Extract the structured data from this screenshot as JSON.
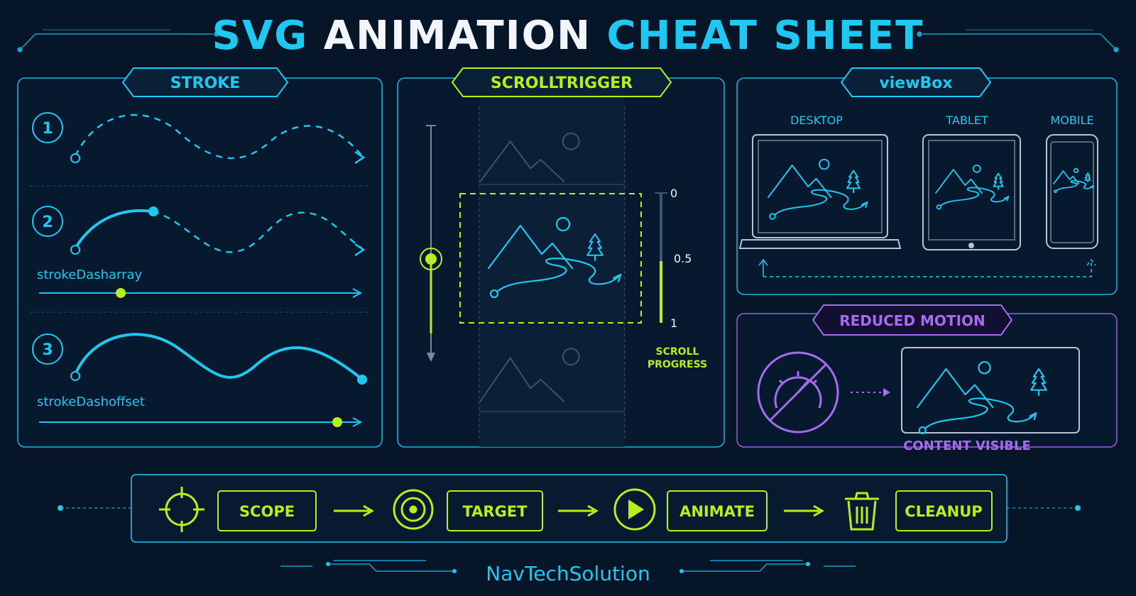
{
  "title": {
    "part1": "SVG",
    "part2": "ANIMATION",
    "part3": "CHEAT SHEET"
  },
  "stroke": {
    "title": "STROKE",
    "steps": [
      "1",
      "2",
      "3"
    ],
    "label2": "strokeDasharray",
    "label3": "strokeDashoffset"
  },
  "scroll": {
    "title": "SCROLLTRIGGER",
    "ticks": [
      "0",
      "0.5",
      "1"
    ],
    "caption1": "SCROLL",
    "caption2": "PROGRESS"
  },
  "viewbox": {
    "title": "viewBox",
    "devices": [
      "DESKTOP",
      "TABLET",
      "MOBILE"
    ]
  },
  "reduced": {
    "title": "REDUCED MOTION",
    "caption": "CONTENT VISIBLE"
  },
  "flow": {
    "steps": [
      "SCOPE",
      "TARGET",
      "ANIMATE",
      "CLEANUP"
    ]
  },
  "footer": {
    "brand": "NavTechSolution"
  },
  "colors": {
    "bg": "#061528",
    "cyan": "#1ec8f0",
    "lime": "#b8ee1a",
    "purple": "#a56cf0",
    "white": "#f2f6fa"
  },
  "icons": [
    "crosshair-icon",
    "target-icon",
    "play-icon",
    "trash-icon",
    "speedometer-off-icon",
    "tree-icon",
    "sun-icon"
  ]
}
